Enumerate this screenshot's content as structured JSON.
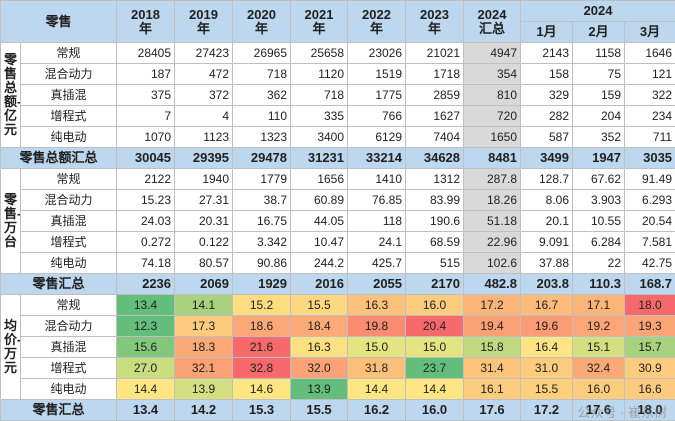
{
  "header": {
    "corner": "零售",
    "years": [
      "2018\n年",
      "2019\n年",
      "2020\n年",
      "2021\n年",
      "2022\n年",
      "2023\n年",
      "2024\n汇总"
    ],
    "group2024": "2024",
    "months": [
      "1月",
      "2月",
      "3月"
    ]
  },
  "sections": {
    "amount": {
      "label": "零售总额-亿元",
      "rows": [
        {
          "name": "常规",
          "values": [
            "28405",
            "27423",
            "26965",
            "25658",
            "23026",
            "21021",
            "4947",
            "2143",
            "1158",
            "1646"
          ]
        },
        {
          "name": "混合动力",
          "values": [
            "187",
            "472",
            "718",
            "1120",
            "1519",
            "1718",
            "354",
            "158",
            "75",
            "121"
          ]
        },
        {
          "name": "真插混",
          "values": [
            "375",
            "372",
            "362",
            "718",
            "1775",
            "2859",
            "810",
            "329",
            "159",
            "322"
          ]
        },
        {
          "name": "增程式",
          "values": [
            "7",
            "4",
            "110",
            "335",
            "766",
            "1627",
            "720",
            "282",
            "204",
            "234"
          ]
        },
        {
          "name": "纯电动",
          "values": [
            "1070",
            "1123",
            "1323",
            "3400",
            "6129",
            "7404",
            "1650",
            "587",
            "352",
            "711"
          ]
        }
      ],
      "total": {
        "name": "零售总额汇总",
        "values": [
          "30045",
          "29395",
          "29478",
          "31231",
          "33214",
          "34628",
          "8481",
          "3499",
          "1947",
          "3035"
        ]
      }
    },
    "volume": {
      "label": "零售-万台",
      "rows": [
        {
          "name": "常规",
          "values": [
            "2122",
            "1940",
            "1779",
            "1656",
            "1410",
            "1312",
            "287.8",
            "128.7",
            "67.62",
            "91.49"
          ]
        },
        {
          "name": "混合动力",
          "values": [
            "15.23",
            "27.31",
            "38.7",
            "60.89",
            "76.85",
            "83.99",
            "18.26",
            "8.06",
            "3.903",
            "6.293"
          ]
        },
        {
          "name": "真插混",
          "values": [
            "24.03",
            "20.31",
            "16.75",
            "44.05",
            "118",
            "190.6",
            "51.18",
            "20.1",
            "10.55",
            "20.54"
          ]
        },
        {
          "name": "增程式",
          "values": [
            "0.272",
            "0.122",
            "3.342",
            "10.47",
            "24.1",
            "68.59",
            "22.96",
            "9.091",
            "6.284",
            "7.581"
          ]
        },
        {
          "name": "纯电动",
          "values": [
            "74.18",
            "80.57",
            "90.86",
            "244.2",
            "425.7",
            "515",
            "102.6",
            "37.88",
            "22",
            "42.75"
          ]
        }
      ],
      "total": {
        "name": "零售汇总",
        "values": [
          "2236",
          "2069",
          "1929",
          "2016",
          "2055",
          "2170",
          "482.8",
          "203.8",
          "110.3",
          "168.7"
        ]
      }
    },
    "price": {
      "label": "均价-万元",
      "rows": [
        {
          "name": "常规",
          "values": [
            "13.4",
            "14.1",
            "15.2",
            "15.5",
            "16.3",
            "16.0",
            "17.2",
            "16.7",
            "17.1",
            "18.0"
          ]
        },
        {
          "name": "混合动力",
          "values": [
            "12.3",
            "17.3",
            "18.6",
            "18.4",
            "19.8",
            "20.4",
            "19.4",
            "19.6",
            "19.2",
            "19.3"
          ]
        },
        {
          "name": "真插混",
          "values": [
            "15.6",
            "18.3",
            "21.6",
            "16.3",
            "15.0",
            "15.0",
            "15.8",
            "16.4",
            "15.1",
            "15.7"
          ]
        },
        {
          "name": "增程式",
          "values": [
            "27.0",
            "32.1",
            "32.8",
            "32.0",
            "31.8",
            "23.7",
            "31.4",
            "31.0",
            "32.4",
            "30.9"
          ]
        },
        {
          "name": "纯电动",
          "values": [
            "14.4",
            "13.9",
            "14.6",
            "13.9",
            "14.4",
            "14.4",
            "16.1",
            "15.5",
            "16.0",
            "16.6"
          ]
        }
      ],
      "colors": [
        [
          "#63be7b",
          "#a9d27f",
          "#fedd81",
          "#fed881",
          "#fcc27b",
          "#fdcc7e",
          "#fcb579",
          "#fdbc7a",
          "#fcb579",
          "#f8696b"
        ],
        [
          "#63be7b",
          "#fdcb7d",
          "#fca878",
          "#fcab78",
          "#fb8c72",
          "#f8696b",
          "#fba176",
          "#fb9c75",
          "#fba677",
          "#fba476"
        ],
        [
          "#82c77c",
          "#fba977",
          "#f8696b",
          "#fde07f",
          "#e5e482",
          "#e5e482",
          "#c1d980",
          "#fee482",
          "#d4df81",
          "#a9d27f"
        ],
        [
          "#c8dc80",
          "#fba176",
          "#f8696b",
          "#fca276",
          "#fdc07b",
          "#63be7b",
          "#fdc57c",
          "#fdcc7e",
          "#fba977",
          "#fdcc7e"
        ],
        [
          "#fee783",
          "#d4df81",
          "#fee783",
          "#63be7b",
          "#fee783",
          "#fee783",
          "#fccd7e",
          "#fdd07e",
          "#fccd7e",
          "#fccb7d"
        ]
      ],
      "total": {
        "name": "零售汇总",
        "values": [
          "13.4",
          "14.2",
          "15.3",
          "15.5",
          "16.2",
          "16.0",
          "17.6",
          "17.2",
          "17.6",
          "18.0"
        ]
      }
    }
  },
  "watermark": "公众号 · 崔东树"
}
